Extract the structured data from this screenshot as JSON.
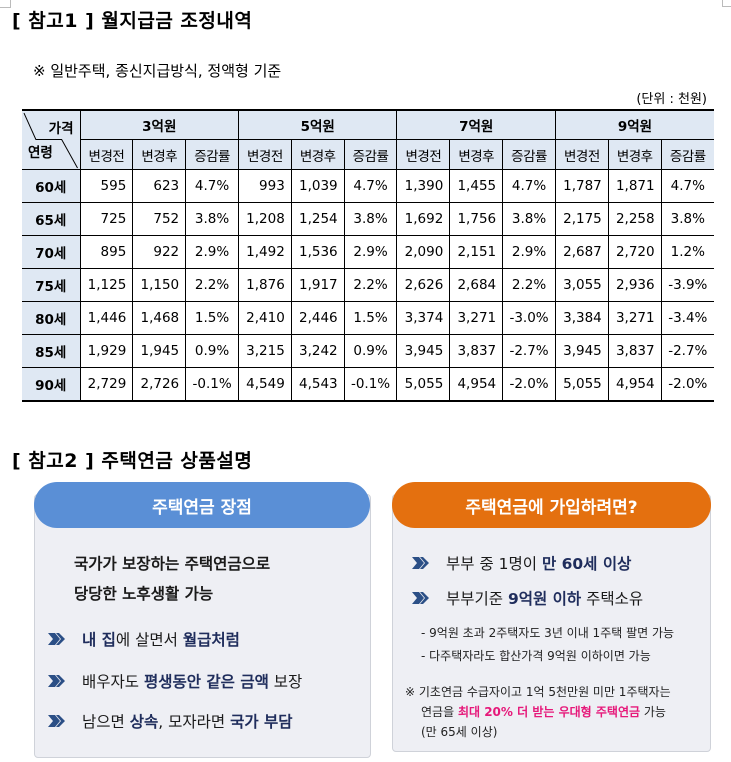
{
  "section1": {
    "title": "[ 참고1 ] 월지급금 조정내역",
    "subtitle": "※ 일반주택, 종신지급방식, 정액형 기준",
    "unit": "(단위 : 천원)"
  },
  "table": {
    "corner_top": "가격",
    "corner_bottom": "연령",
    "price_groups": [
      "3억원",
      "5억원",
      "7억원",
      "9억원"
    ],
    "sub_headers": [
      "변경전",
      "변경후",
      "증감률"
    ],
    "rows": [
      {
        "age": "60세",
        "cells": [
          "595",
          "623",
          "4.7%",
          "993",
          "1,039",
          "4.7%",
          "1,390",
          "1,455",
          "4.7%",
          "1,787",
          "1,871",
          "4.7%"
        ]
      },
      {
        "age": "65세",
        "cells": [
          "725",
          "752",
          "3.8%",
          "1,208",
          "1,254",
          "3.8%",
          "1,692",
          "1,756",
          "3.8%",
          "2,175",
          "2,258",
          "3.8%"
        ]
      },
      {
        "age": "70세",
        "cells": [
          "895",
          "922",
          "2.9%",
          "1,492",
          "1,536",
          "2.9%",
          "2,090",
          "2,151",
          "2.9%",
          "2,687",
          "2,720",
          "1.2%"
        ]
      },
      {
        "age": "75세",
        "cells": [
          "1,125",
          "1,150",
          "2.2%",
          "1,876",
          "1,917",
          "2.2%",
          "2,626",
          "2,684",
          "2.2%",
          "3,055",
          "2,936",
          "-3.9%"
        ]
      },
      {
        "age": "80세",
        "cells": [
          "1,446",
          "1,468",
          "1.5%",
          "2,410",
          "2,446",
          "1.5%",
          "3,374",
          "3,271",
          "-3.0%",
          "3,384",
          "3,271",
          "-3.4%"
        ]
      },
      {
        "age": "85세",
        "cells": [
          "1,929",
          "1,945",
          "0.9%",
          "3,215",
          "3,242",
          "0.9%",
          "3,945",
          "3,837",
          "-2.7%",
          "3,945",
          "3,837",
          "-2.7%"
        ]
      },
      {
        "age": "90세",
        "cells": [
          "2,729",
          "2,726",
          "-0.1%",
          "4,549",
          "4,543",
          "-0.1%",
          "5,055",
          "4,954",
          "-2.0%",
          "5,055",
          "4,954",
          "-2.0%"
        ]
      }
    ]
  },
  "section2": {
    "title": "[ 참고2 ] 주택연금 상품설명"
  },
  "card_advantages": {
    "header": "주택연금 장점",
    "header_color": "#5a8fd6",
    "lead_line1": "국가가 보장하는 주택연금으로",
    "lead_line2": "당당한 노후생활 가능",
    "bullets": [
      {
        "parts": [
          {
            "t": "내 집",
            "b": true
          },
          {
            "t": "에 살면서 ",
            "b": false
          },
          {
            "t": "월급처럼",
            "b": true
          }
        ]
      },
      {
        "parts": [
          {
            "t": "배우자도 ",
            "b": false
          },
          {
            "t": "평생동안 같은 금액",
            "b": true
          },
          {
            "t": " 보장",
            "b": false
          }
        ]
      },
      {
        "parts": [
          {
            "t": "남으면 ",
            "b": false
          },
          {
            "t": "상속",
            "b": true
          },
          {
            "t": ", 모자라면 ",
            "b": false
          },
          {
            "t": "국가 부담",
            "b": true
          }
        ]
      }
    ]
  },
  "card_join": {
    "header": "주택연금에 가입하려면?",
    "header_color": "#e4700f",
    "bullets": [
      {
        "parts": [
          {
            "t": "부부 중 1명이 ",
            "b": false
          },
          {
            "t": "만 60세 이상",
            "b": true
          }
        ]
      },
      {
        "parts": [
          {
            "t": "부부기준 ",
            "b": false
          },
          {
            "t": "9억원 이하",
            "b": true
          },
          {
            "t": " 주택소유",
            "b": false
          }
        ]
      }
    ],
    "sub_items": [
      "- 9억원 초과 2주택자도 3년 이내 1주택 팔면 가능",
      "- 다주택자라도 합산가격 9억원 이하이면 가능"
    ],
    "note_line1": "※ 기초연금 수급자이고 1억 5천만원 미만 1주택자는",
    "note_line2_pre": "연금을 ",
    "note_line2_highlight": "최대 20% 더 받는 우대형 주택연금",
    "note_line2_post": " 가능",
    "note_line3": "(만 65세 이상)",
    "highlight_color": "#e6197a"
  },
  "icons": {
    "bullet": "double-chevron-right-icon",
    "bullet_color": "#2b4f86"
  }
}
